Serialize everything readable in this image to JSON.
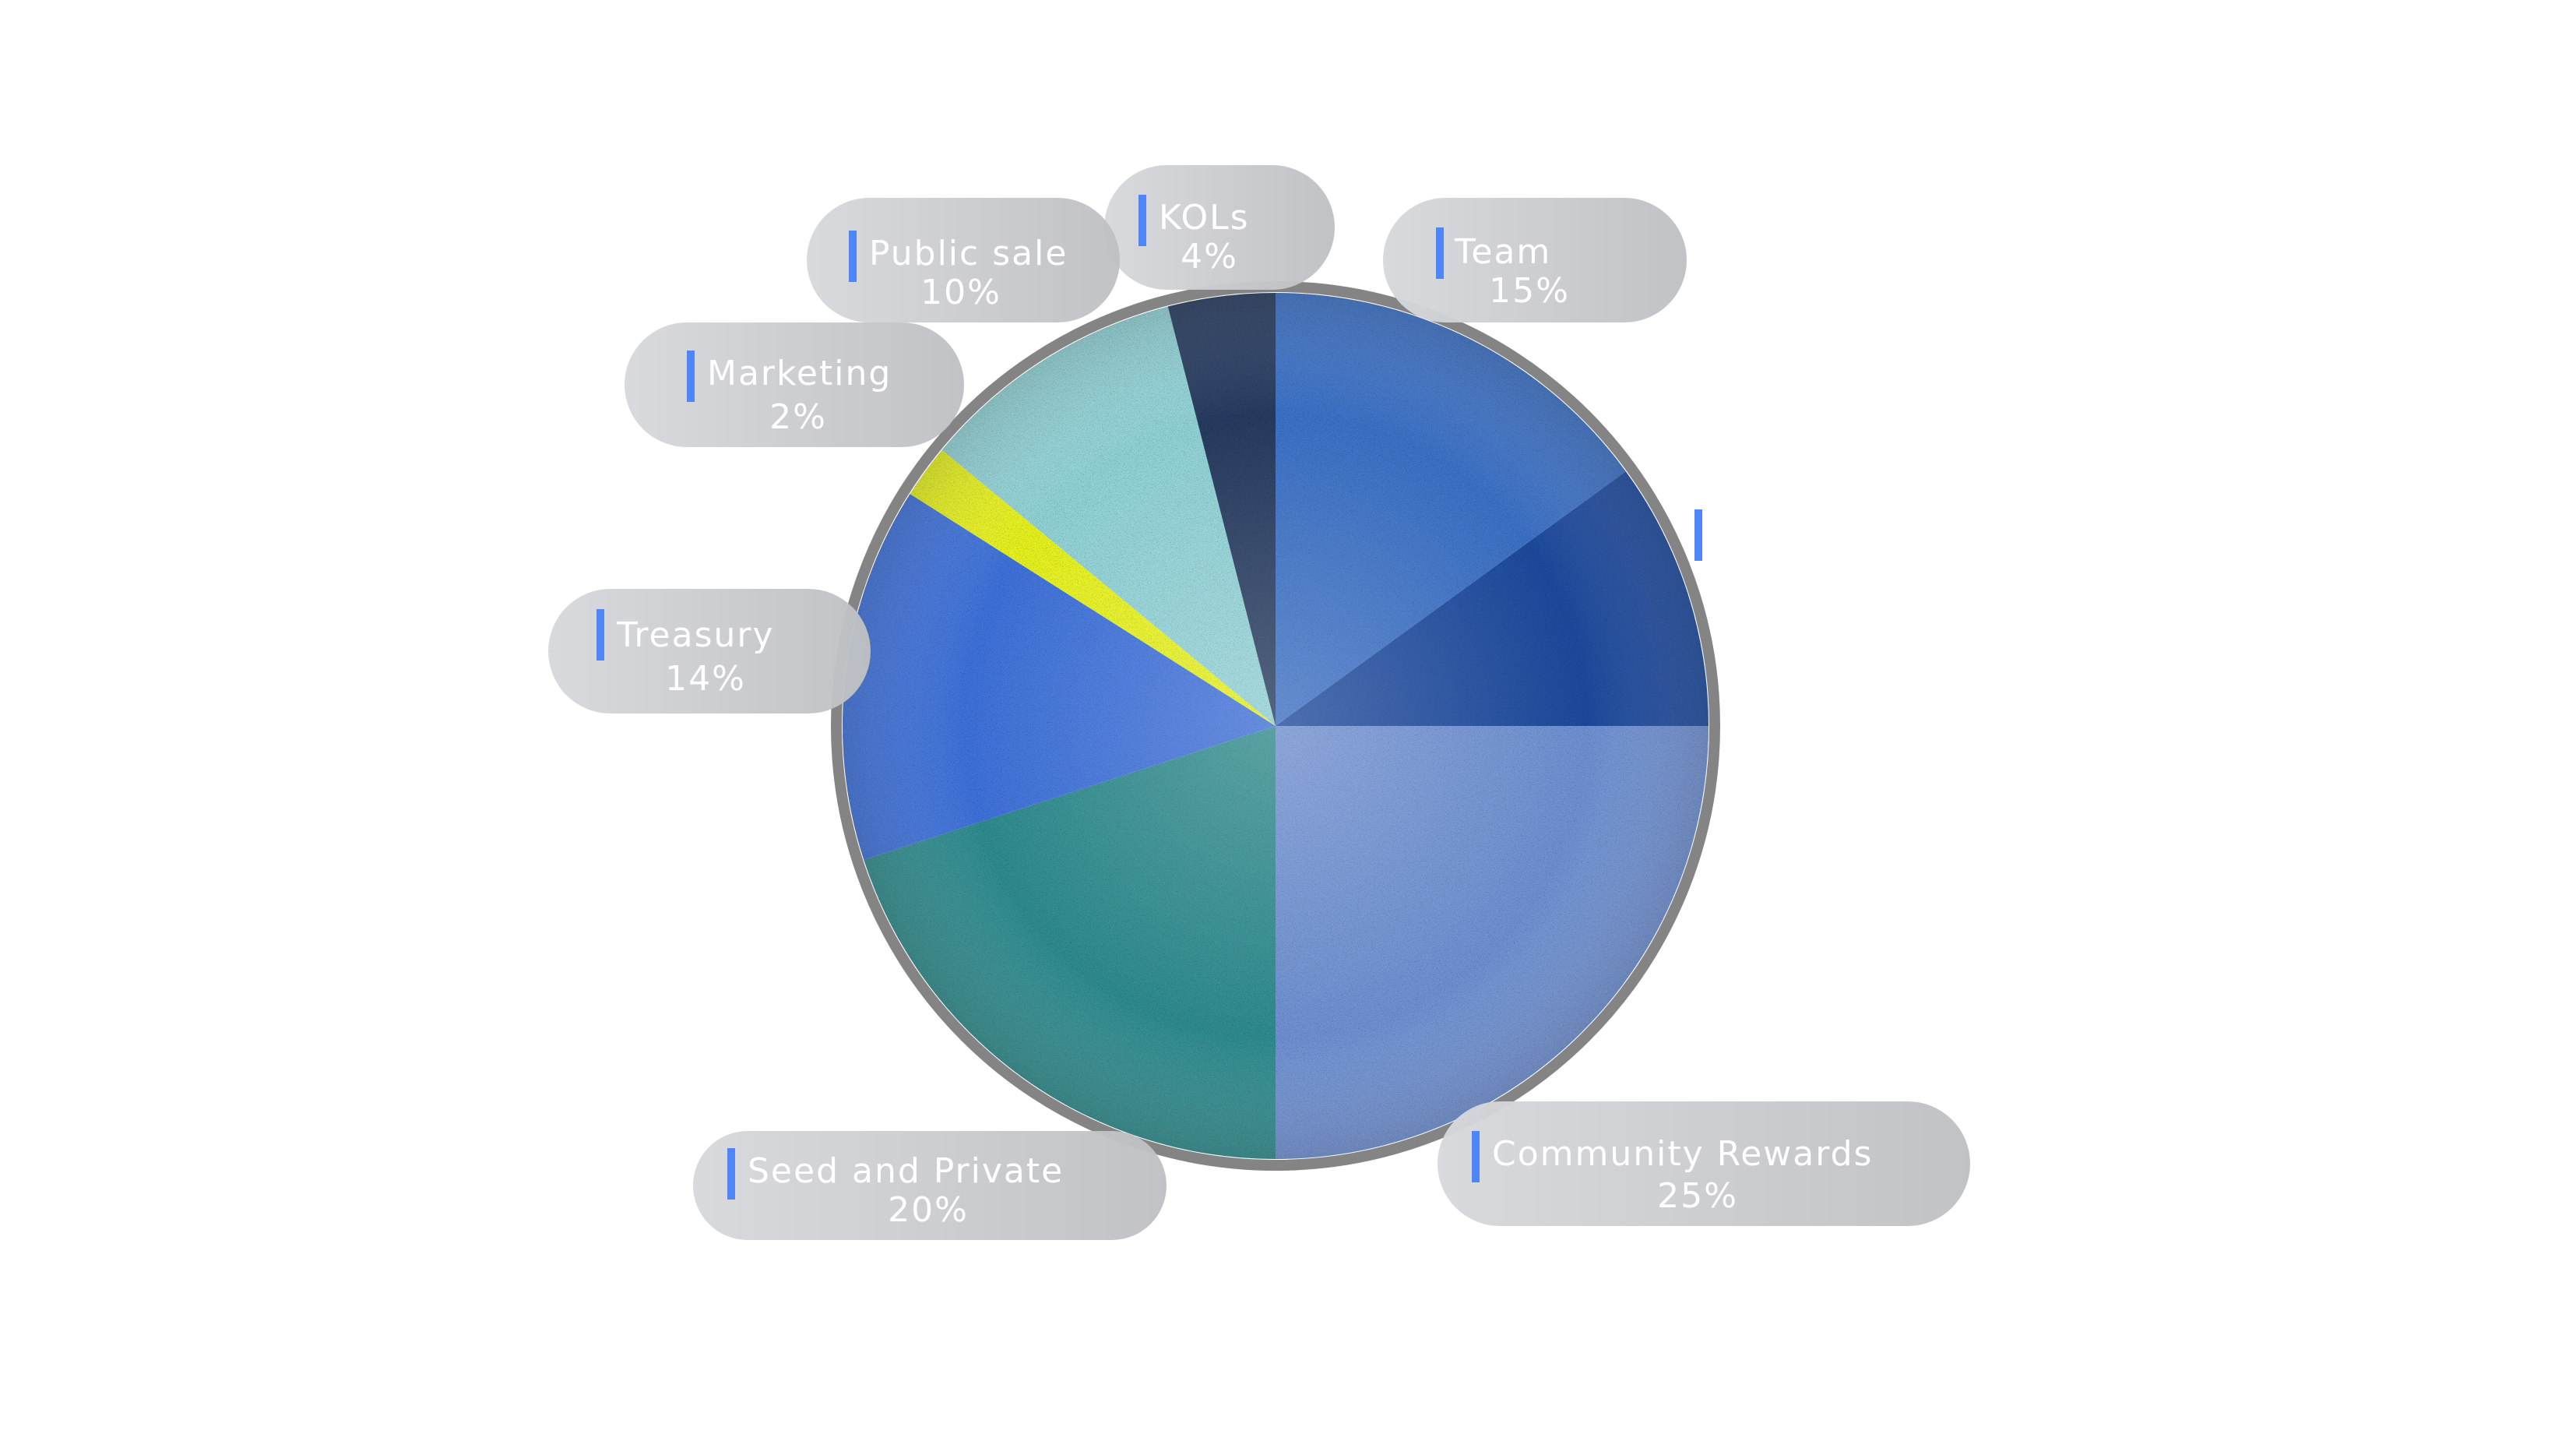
{
  "chart_data": {
    "type": "pie",
    "title": "",
    "slices": [
      {
        "label": "Team",
        "value": 15,
        "display": "15%",
        "color": "#3a6fc4"
      },
      {
        "label": "",
        "value": 10,
        "display": "",
        "color": "#1d4a9c"
      },
      {
        "label": "Community Rewards",
        "value": 25,
        "display": "25%",
        "color": "#6d8fd0"
      },
      {
        "label": "Seed and Private",
        "value": 20,
        "display": "20%",
        "color": "#2e8a8c"
      },
      {
        "label": "Treasury",
        "value": 14,
        "display": "14%",
        "color": "#3c6fd8"
      },
      {
        "label": "Marketing",
        "value": 2,
        "display": "2%",
        "color": "#e4ef1e"
      },
      {
        "label": "Public sale",
        "value": 10,
        "display": "10%",
        "color": "#8fd0d4"
      },
      {
        "label": "KOLs",
        "value": 4,
        "display": "4%",
        "color": "#253a5e"
      }
    ],
    "start_angle": "12 o'clock",
    "direction": "clockwise",
    "legend": "none",
    "accent_color": "#4f86f7"
  }
}
